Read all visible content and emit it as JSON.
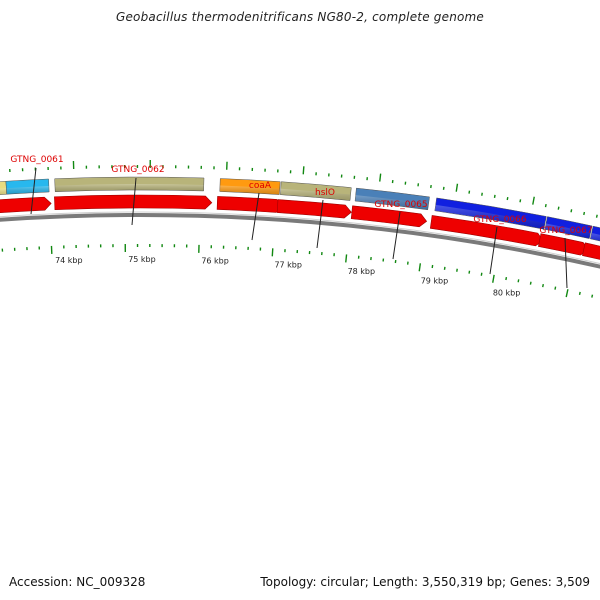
{
  "title": "Geobacillus thermodenitrificans NG80-2, complete genome",
  "footer": {
    "accession": "Accession: NC_009328",
    "summary": "Topology: circular; Length: 3,550,319 bp; Genes: 3,509"
  },
  "colors": {
    "cds_strand": "#ee0000",
    "label_text": "#dd0000",
    "tick": "#118811",
    "backbone": "#7a7a7a",
    "cog_cyan": "#28b8ee",
    "cog_khaki": "#b8b47a",
    "cog_orange": "#ff9a10",
    "cog_steelblue": "#4a80b8",
    "cog_blue": "#1020e0",
    "cog_yellow": "#e8dc80"
  },
  "gene_labels": [
    {
      "text": "GTNG_0061"
    },
    {
      "text": "GTNG_0062"
    },
    {
      "text": "coaA"
    },
    {
      "text": "hslO"
    },
    {
      "text": "GTNG_0065"
    },
    {
      "text": "GTNG_0066"
    },
    {
      "text": "GTNG_0067"
    }
  ],
  "kbp_labels": [
    {
      "text": "74 kbp"
    },
    {
      "text": "75 kbp"
    },
    {
      "text": "76 kbp"
    },
    {
      "text": "77 kbp"
    },
    {
      "text": "78 kbp"
    },
    {
      "text": "79 kbp"
    },
    {
      "text": "80 kbp"
    }
  ],
  "cog_segments": [
    {
      "color": "cog_yellow"
    },
    {
      "color": "cog_cyan"
    },
    {
      "color": "cog_khaki"
    },
    {
      "color": "cog_orange"
    },
    {
      "color": "cog_khaki"
    },
    {
      "color": "cog_steelblue"
    },
    {
      "color": "cog_blue"
    },
    {
      "color": "cog_blue"
    },
    {
      "color": "cog_blue"
    }
  ]
}
